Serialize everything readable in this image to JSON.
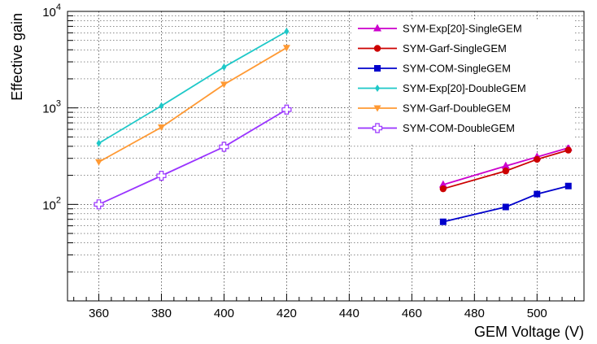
{
  "chart_data": {
    "type": "line",
    "xlabel": "GEM Voltage (V)",
    "ylabel": "Effective gain",
    "xlim": [
      350,
      515
    ],
    "ylim": [
      10,
      10000
    ],
    "y_scale": "log",
    "grid": true,
    "grid_style": "dotted",
    "legend_position": "top-right",
    "x_ticks": [
      360,
      380,
      400,
      420,
      440,
      460,
      480,
      500
    ],
    "x_tick_labels": [
      "360",
      "380",
      "400",
      "420",
      "440",
      "460",
      "480",
      "500"
    ],
    "y_ticks": [
      {
        "value": 100,
        "base": "10",
        "exp": "2"
      },
      {
        "value": 1000,
        "base": "10",
        "exp": "3"
      },
      {
        "value": 10000,
        "base": "10",
        "exp": "4"
      }
    ],
    "series": [
      {
        "name": "SYM-Exp[20]-SingleGEM",
        "color": "#cc00cc",
        "marker": "triangle",
        "x": [
          470,
          490,
          500,
          510
        ],
        "y": [
          160,
          250,
          310,
          385
        ]
      },
      {
        "name": "SYM-Garf-SingleGEM",
        "color": "#cc0000",
        "marker": "circle",
        "x": [
          470,
          490,
          500,
          510
        ],
        "y": [
          145,
          222,
          293,
          365
        ]
      },
      {
        "name": "SYM-COM-SingleGEM",
        "color": "#0000cc",
        "marker": "square",
        "x": [
          470,
          490,
          500,
          510
        ],
        "y": [
          66,
          94,
          128,
          155
        ]
      },
      {
        "name": "SYM-Exp[20]-DoubleGEM",
        "color": "#1ec8c8",
        "marker": "diamond",
        "x": [
          360,
          380,
          400,
          420
        ],
        "y": [
          430,
          1050,
          2650,
          6200
        ]
      },
      {
        "name": "SYM-Garf-DoubleGEM",
        "color": "#ff9933",
        "marker": "star",
        "x": [
          360,
          380,
          400,
          420
        ],
        "y": [
          275,
          630,
          1750,
          4200
        ]
      },
      {
        "name": "SYM-COM-DoubleGEM",
        "color": "#9933ff",
        "marker": "open-cross",
        "x": [
          360,
          380,
          400,
          420
        ],
        "y": [
          100,
          198,
          395,
          960
        ]
      }
    ]
  }
}
